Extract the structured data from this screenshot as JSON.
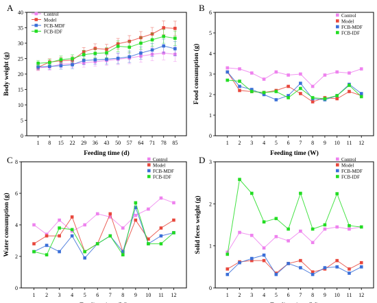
{
  "colors": {
    "Control": "#ee82ee",
    "Model": "#e8473c",
    "FCB-MDF": "#3a6fd8",
    "FCB-IDF": "#22dd22",
    "axis": "#000000"
  },
  "chart_data": [
    {
      "panel_letter": "A",
      "type": "line",
      "xlabel": "Feeding time (d)",
      "ylabel": "Body weight (g)",
      "categories": [
        "1",
        "8",
        "15",
        "22",
        "29",
        "36",
        "43",
        "50",
        "57",
        "64",
        "71",
        "78",
        "85"
      ],
      "ylim": [
        0,
        40
      ],
      "yticks": [
        "0",
        "5",
        "10",
        "15",
        "20",
        "25",
        "30",
        "35",
        "40"
      ],
      "error_bars": true,
      "legend": "top-left",
      "series": [
        {
          "name": "Control",
          "values": [
            22.0,
            22.3,
            23.2,
            23.4,
            23.6,
            24.0,
            24.4,
            24.8,
            25.2,
            25.8,
            26.4,
            26.8,
            26.4
          ]
        },
        {
          "name": "Model",
          "values": [
            22.2,
            23.9,
            24.3,
            24.5,
            27.2,
            28.3,
            28.0,
            29.8,
            30.6,
            31.8,
            33.0,
            35.0,
            34.8
          ]
        },
        {
          "name": "FCB-MDF",
          "values": [
            22.3,
            22.5,
            22.7,
            23.0,
            24.4,
            24.6,
            24.8,
            25.1,
            25.6,
            26.8,
            27.8,
            29.1,
            28.2
          ]
        },
        {
          "name": "FCB-IDF",
          "values": [
            23.5,
            23.7,
            24.7,
            25.0,
            26.3,
            26.7,
            26.9,
            29.0,
            28.7,
            30.0,
            31.1,
            32.2,
            31.6
          ]
        }
      ]
    },
    {
      "panel_letter": "B",
      "type": "line",
      "xlabel": "Feeding time (W)",
      "ylabel": "Food consumption (g)",
      "categories": [
        "1",
        "2",
        "3",
        "4",
        "5",
        "6",
        "7",
        "8",
        "9",
        "10",
        "11",
        "12"
      ],
      "ylim": [
        0,
        6
      ],
      "yticks": [
        "0",
        "1",
        "2",
        "3",
        "4",
        "5",
        "6"
      ],
      "legend": "top-right",
      "series": [
        {
          "name": "Control",
          "values": [
            3.3,
            3.25,
            3.05,
            2.75,
            3.1,
            2.95,
            3.0,
            2.4,
            2.95,
            3.1,
            3.05,
            3.25
          ]
        },
        {
          "name": "Model",
          "values": [
            3.1,
            2.2,
            2.15,
            2.1,
            2.2,
            2.4,
            2.05,
            1.65,
            1.85,
            1.8,
            2.15,
            1.95
          ]
        },
        {
          "name": "FCB-MDF",
          "values": [
            3.1,
            2.4,
            2.25,
            2.0,
            1.75,
            1.95,
            2.55,
            1.8,
            1.75,
            1.95,
            2.5,
            2.05
          ]
        },
        {
          "name": "FCB-IDF",
          "values": [
            2.7,
            2.65,
            2.15,
            2.1,
            2.15,
            1.85,
            2.3,
            1.85,
            1.8,
            1.95,
            2.45,
            1.9
          ]
        }
      ]
    },
    {
      "panel_letter": "C",
      "type": "line",
      "xlabel": "Feeding time (W)",
      "ylabel": "Water consumption (g)",
      "categories": [
        "1",
        "2",
        "3",
        "4",
        "5",
        "6",
        "7",
        "8",
        "9",
        "10",
        "11",
        "12"
      ],
      "ylim": [
        0,
        8
      ],
      "yticks": [
        "0",
        "2",
        "4",
        "6",
        "8"
      ],
      "legend": "top-right",
      "series": [
        {
          "name": "Control",
          "values": [
            4.0,
            3.4,
            4.3,
            3.6,
            4.0,
            4.7,
            4.5,
            3.8,
            4.6,
            5.0,
            5.7,
            5.4
          ]
        },
        {
          "name": "Model",
          "values": [
            2.8,
            3.3,
            3.3,
            4.5,
            2.3,
            2.8,
            4.7,
            2.3,
            4.3,
            3.1,
            3.8,
            4.3
          ]
        },
        {
          "name": "FCB-MDF",
          "values": [
            2.3,
            2.7,
            2.3,
            3.3,
            1.9,
            2.8,
            3.3,
            2.3,
            5.1,
            2.8,
            3.3,
            3.5
          ]
        },
        {
          "name": "FCB-IDF",
          "values": [
            2.3,
            2.1,
            3.8,
            3.7,
            2.3,
            2.8,
            3.3,
            2.1,
            5.4,
            2.8,
            2.8,
            3.5
          ]
        }
      ]
    },
    {
      "panel_letter": "D",
      "type": "line",
      "xlabel": "Feeding time (W)",
      "ylabel": "Solid feces weight (g)",
      "categories": [
        "1",
        "2",
        "3",
        "4",
        "5",
        "6",
        "7",
        "8",
        "9",
        "10",
        "11",
        "12"
      ],
      "ylim": [
        0,
        3
      ],
      "yticks": [
        "0",
        "1",
        "2",
        "3"
      ],
      "legend": "top-right",
      "series": [
        {
          "name": "Control",
          "values": [
            0.85,
            1.32,
            1.25,
            0.95,
            1.22,
            1.12,
            1.35,
            1.08,
            1.4,
            1.45,
            1.4,
            1.45
          ]
        },
        {
          "name": "Model",
          "values": [
            0.45,
            0.62,
            0.65,
            0.65,
            0.35,
            0.58,
            0.65,
            0.38,
            0.45,
            0.65,
            0.45,
            0.6
          ]
        },
        {
          "name": "FCB-MDF",
          "values": [
            0.32,
            0.6,
            0.7,
            0.78,
            0.32,
            0.58,
            0.48,
            0.32,
            0.48,
            0.5,
            0.35,
            0.5
          ]
        },
        {
          "name": "FCB-IDF",
          "values": [
            0.8,
            2.58,
            2.25,
            1.57,
            1.65,
            1.4,
            2.25,
            1.4,
            1.5,
            2.24,
            1.48,
            1.45
          ]
        }
      ]
    }
  ]
}
